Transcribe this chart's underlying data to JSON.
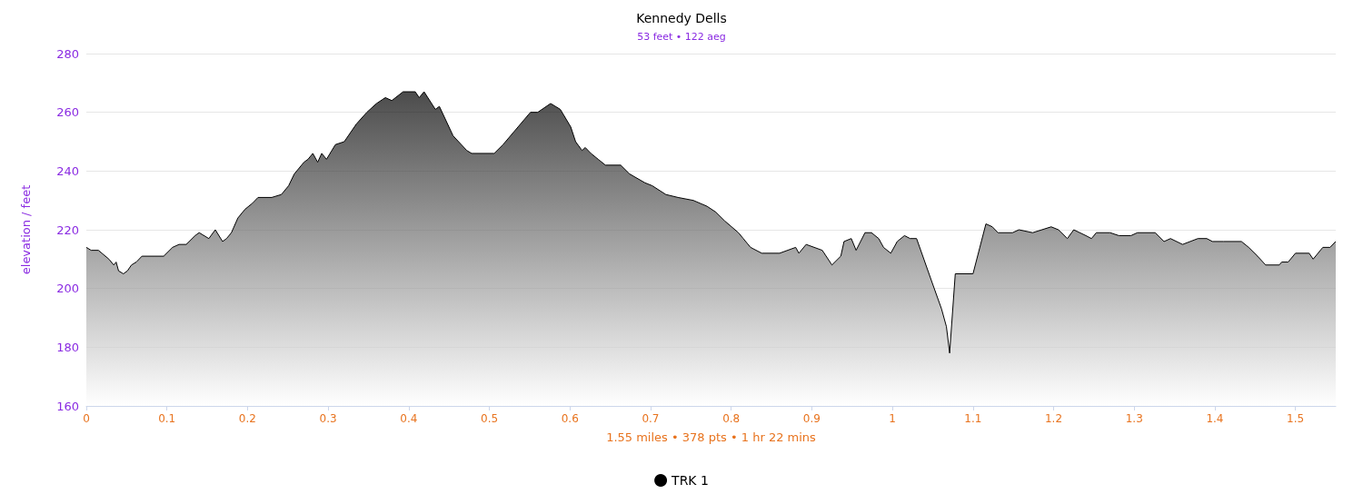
{
  "chart_data": {
    "type": "area",
    "title": "Kennedy Dells",
    "subtitle": "53 feet • 122 aeg",
    "xlabel": "1.55 miles • 378 pts • 1 hr 22 mins",
    "ylabel": "elevation / feet",
    "xlim": [
      0,
      1.55
    ],
    "xticks": [
      0,
      0.1,
      0.2,
      0.3,
      0.4,
      0.5,
      0.6,
      0.7,
      0.8,
      0.9,
      1,
      1.1,
      1.2,
      1.3,
      1.4,
      1.5
    ],
    "ylim": [
      160,
      280
    ],
    "yticks": [
      160,
      180,
      200,
      220,
      240,
      260,
      280
    ],
    "grid": "y",
    "legend": "bottom",
    "marker": "none",
    "line_style": "solid",
    "series": [
      {
        "name": "TRK 1",
        "color": "#000000",
        "x": [
          0,
          0.006,
          0.015,
          0.028,
          0.034,
          0.037,
          0.04,
          0.046,
          0.051,
          0.056,
          0.062,
          0.069,
          0.096,
          0.107,
          0.115,
          0.124,
          0.135,
          0.14,
          0.152,
          0.16,
          0.169,
          0.174,
          0.18,
          0.188,
          0.197,
          0.206,
          0.213,
          0.23,
          0.242,
          0.251,
          0.258,
          0.27,
          0.275,
          0.281,
          0.287,
          0.292,
          0.298,
          0.309,
          0.32,
          0.335,
          0.348,
          0.36,
          0.371,
          0.379,
          0.393,
          0.408,
          0.413,
          0.419,
          0.433,
          0.438,
          0.455,
          0.472,
          0.478,
          0.506,
          0.517,
          0.551,
          0.56,
          0.576,
          0.588,
          0.601,
          0.607,
          0.615,
          0.619,
          0.626,
          0.635,
          0.644,
          0.663,
          0.674,
          0.693,
          0.702,
          0.719,
          0.734,
          0.753,
          0.77,
          0.781,
          0.792,
          0.809,
          0.815,
          0.824,
          0.838,
          0.86,
          0.88,
          0.884,
          0.893,
          0.913,
          0.925,
          0.936,
          0.94,
          0.949,
          0.955,
          0.966,
          0.974,
          0.983,
          0.989,
          0.998,
          1.006,
          1.015,
          1.022,
          1.03,
          1.048,
          1.061,
          1.067,
          1.071,
          1.078,
          1.1,
          1.116,
          1.124,
          1.131,
          1.149,
          1.157,
          1.174,
          1.197,
          1.206,
          1.217,
          1.225,
          1.24,
          1.247,
          1.253,
          1.27,
          1.281,
          1.296,
          1.304,
          1.326,
          1.337,
          1.345,
          1.36,
          1.379,
          1.39,
          1.397,
          1.411,
          1.433,
          1.442,
          1.453,
          1.463,
          1.48,
          1.483,
          1.491,
          1.5,
          1.517,
          1.522,
          1.534,
          1.543,
          1.55
        ],
        "values": [
          214,
          213,
          213,
          210,
          208,
          209,
          206,
          205,
          206,
          208,
          209,
          211,
          211,
          214,
          215,
          215,
          218,
          219,
          217,
          220,
          216,
          217,
          219,
          224,
          227,
          229,
          231,
          231,
          232,
          235,
          239,
          243,
          244,
          246,
          243,
          246,
          244,
          249,
          250,
          256,
          260,
          263,
          265,
          264,
          267,
          267,
          265,
          267,
          261,
          262,
          252,
          247,
          246,
          246,
          249,
          260,
          260,
          263,
          261,
          255,
          250,
          247,
          248,
          246,
          244,
          242,
          242,
          239,
          236,
          235,
          232,
          231,
          230,
          228,
          226,
          223,
          219,
          217,
          214,
          212,
          212,
          214,
          212,
          215,
          213,
          208,
          211,
          216,
          217,
          213,
          219,
          219,
          217,
          214,
          212,
          216,
          218,
          217,
          217,
          203,
          193,
          187,
          178,
          205,
          205,
          222,
          221,
          219,
          219,
          220,
          219,
          221,
          220,
          217,
          220,
          218,
          217,
          219,
          219,
          218,
          218,
          219,
          219,
          216,
          217,
          215,
          217,
          217,
          216,
          216,
          216,
          214,
          211,
          208,
          208,
          209,
          209,
          212,
          212,
          210,
          214,
          214,
          216
        ]
      }
    ]
  }
}
